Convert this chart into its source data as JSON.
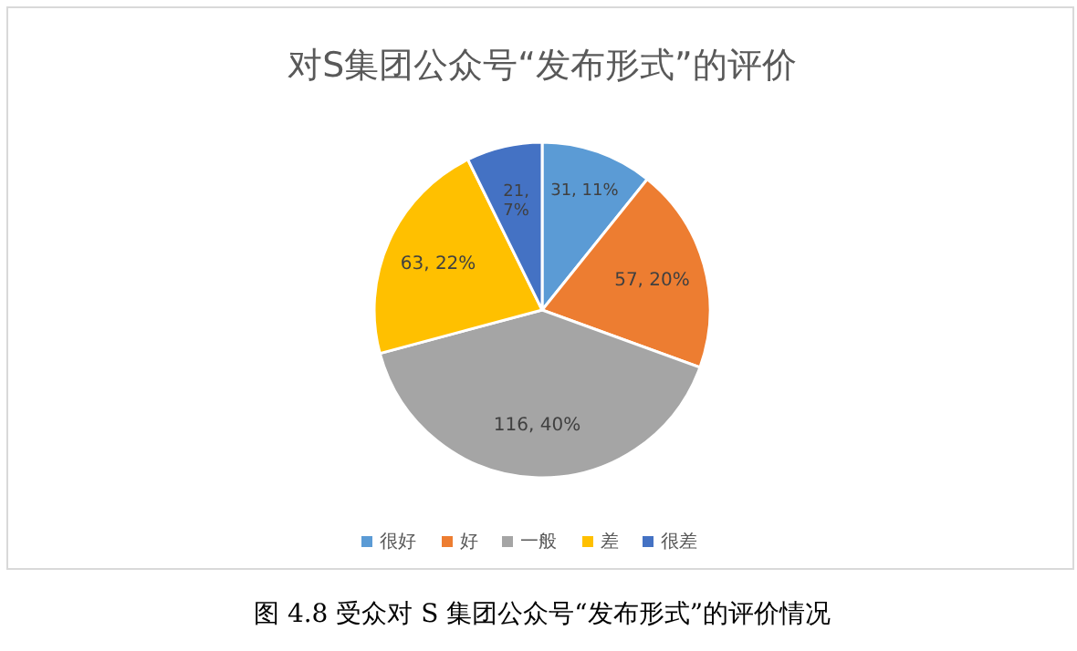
{
  "chart_data": {
    "type": "pie",
    "title": "对S集团公众号“发布形式”的评价",
    "categories": [
      "很好",
      "好",
      "一般",
      "差",
      "很差"
    ],
    "values": [
      31,
      57,
      116,
      63,
      21
    ],
    "value_labels": [
      "31, 11%",
      "57, 20%",
      "116, 40%",
      "63, 22%",
      "21, 7%"
    ],
    "colors": [
      "#5b9bd5",
      "#ed7d31",
      "#a5a5a5",
      "#ffc000",
      "#4472c4"
    ],
    "legend": "bottom",
    "annotations": [
      "图 4.8  受众对 S 集团公众号“发布形式”的评价情况"
    ]
  }
}
